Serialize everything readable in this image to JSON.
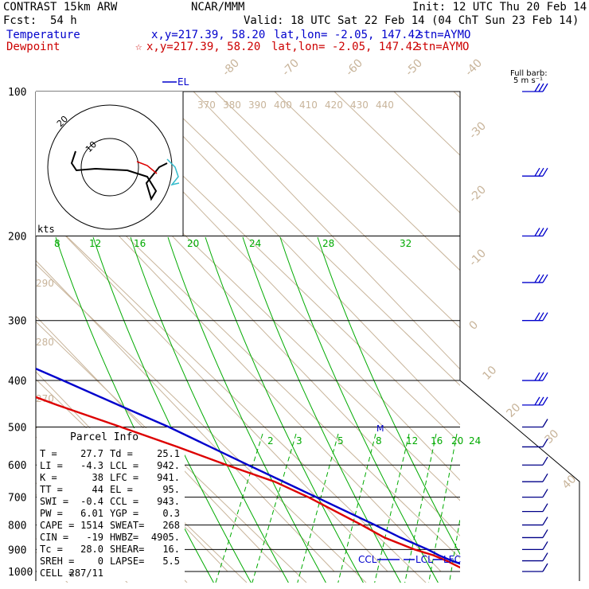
{
  "header": {
    "model": "CONTRAST 15km ARW",
    "center": "NCAR/MMM",
    "init": "Init: 12 UTC Thu 20 Feb 14",
    "fcst_label": "Fcst:",
    "fcst_value": "54 h",
    "valid": "Valid: 18 UTC Sat 22 Feb 14 (04 ChT Sun 23 Feb 14)",
    "temp_row": {
      "label": "Temperature",
      "xy": "x,y=217.39, 58.20",
      "latlon": "lat,lon= -2.05, 147.42",
      "stn": "stn=AYMO"
    },
    "dew_row": {
      "label": "Dewpoint",
      "xy": "x,y=217.39, 58.20",
      "latlon": "lat,lon= -2.05, 147.42",
      "stn": "stn=AYMO",
      "marker": "☆"
    }
  },
  "barb_title": [
    "Full barb:",
    "5 m s⁻¹"
  ],
  "el_label": "EL",
  "hodo": {
    "kts_label": "kts",
    "ring_labels": [
      "20",
      "10"
    ]
  },
  "parcel": {
    "title": "Parcel Info",
    "rows": [
      [
        "T  =",
        "27.7",
        "Td =",
        "25.1"
      ],
      [
        "LI =",
        "-4.3",
        "LCL =",
        "942."
      ],
      [
        "K  =",
        "38",
        "LFC =",
        "941."
      ],
      [
        "TT =",
        "44",
        "EL  =",
        "95."
      ],
      [
        "SWI =",
        "-0.4",
        "CCL =",
        "943."
      ],
      [
        "PW =",
        "6.01",
        "YGP =",
        "0.3"
      ],
      [
        "CAPE =",
        "1514",
        "SWEAT=",
        "268"
      ],
      [
        "CIN =",
        "-19",
        "HWBZ=",
        "4905."
      ],
      [
        "Tc =",
        "28.0",
        "SHEAR=",
        "16."
      ],
      [
        "SREH =",
        "0",
        "LAPSE=",
        "5.5"
      ],
      [
        "CELL =",
        "287/11",
        "",
        ""
      ]
    ]
  },
  "markers": {
    "ccl": "CCL",
    "lcl": "LCL",
    "lfc": "LFC",
    "m": "M"
  },
  "colors": {
    "temperature": "#0000cc",
    "dewpoint": "#dd0000",
    "isotherm": "#c8b49a",
    "adiabat": "#00aa00",
    "hodo_cyan": "#33bbcc"
  },
  "chart_data": {
    "type": "line",
    "title": "",
    "ylabel": "",
    "xlabel": "",
    "pressure_ticks": [
      100,
      200,
      300,
      400,
      500,
      600,
      700,
      800,
      900,
      1000
    ],
    "isotherm_labels": [
      "-80",
      "-70",
      "-60",
      "-50",
      "-40",
      "-30",
      "-20",
      "-10",
      "0",
      "10",
      "20",
      "30",
      "40"
    ],
    "theta_e_labels": [
      "370",
      "380",
      "390",
      "400",
      "410",
      "420",
      "430",
      "440"
    ],
    "theta_left_labels": [
      "290",
      "280",
      "270"
    ],
    "saturated_adiabat_labels": [
      "8",
      "12",
      "16",
      "20",
      "24",
      "28",
      "32"
    ],
    "mixing_ratio_labels": [
      "2",
      "3",
      "5",
      "8",
      "12",
      "16",
      "20",
      "24"
    ],
    "series": [
      {
        "name": "Temperature",
        "p": [
          1000,
          950,
          925,
          900,
          850,
          800,
          700,
          600,
          500,
          450,
          400,
          350,
          300,
          250,
          200,
          170,
          150,
          130,
          115,
          100
        ],
        "t": [
          27.7,
          24.0,
          22.5,
          21.5,
          18.5,
          16.0,
          10.0,
          3.0,
          -5.0,
          -10.5,
          -16.5,
          -23.5,
          -32.0,
          -42.0,
          -54.0,
          -62.0,
          -68.0,
          -74.0,
          -79.0,
          -84.0
        ]
      },
      {
        "name": "Dewpoint",
        "p": [
          1000,
          950,
          925,
          900,
          850,
          800,
          700,
          650,
          600,
          550,
          500,
          450,
          400,
          350,
          330,
          300,
          250,
          220,
          200,
          180,
          160,
          140,
          120,
          110,
          100
        ],
        "t": [
          25.1,
          23.0,
          21.5,
          19.0,
          15.5,
          13.5,
          8.5,
          5.0,
          -1.0,
          -7.0,
          -14.0,
          -22.0,
          -30.0,
          -36.0,
          -40.0,
          -45.0,
          -52.0,
          -57.0,
          -64.0,
          -66.0,
          -70.0,
          -76.0,
          -83.0,
          -82.0,
          -82.0
        ]
      }
    ],
    "wind_barbs": {
      "pressures": [
        100,
        150,
        200,
        250,
        300,
        400,
        450,
        500,
        550,
        600,
        650,
        700,
        750,
        800,
        850,
        900,
        950,
        1000
      ],
      "shown": true
    }
  }
}
